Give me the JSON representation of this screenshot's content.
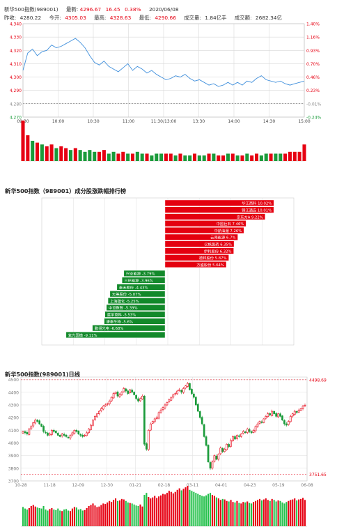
{
  "header": {
    "name": "新华500指数(989001)",
    "latest_label": "最新:",
    "latest": "4296.67",
    "change": "16.45",
    "pct": "0.38%",
    "date": "2020/06/08",
    "prev_label": "昨收:",
    "prev": "4280.22",
    "open_label": "今开:",
    "open": "4305.03",
    "high_label": "最高:",
    "high": "4328.63",
    "low_label": "最低:",
    "low": "4290.66",
    "vol_label": "成交量:",
    "vol": "1.84亿手",
    "amt_label": "成交额:",
    "amt": "2682.34亿"
  },
  "colors": {
    "up": "#e60012",
    "down": "#1a9b3a",
    "line": "#3f8fdc",
    "grid": "#d8d8d8",
    "axis": "#888888"
  },
  "ranking_title": "新华500指数（989001）成分股涨跌幅排行榜",
  "kline_title": "新华500指数(989001)日线",
  "chart_data": [
    {
      "type": "line",
      "title": "",
      "x_ticks": [
        "09:30",
        "10:00",
        "10:30",
        "11:00",
        "11:30/13:00",
        "13:30",
        "14:00",
        "14:30",
        "15:00"
      ],
      "y_left_ticks": [
        "4,340",
        "4,330",
        "4,320",
        "4,310",
        "4,300",
        "4,290",
        "4,280",
        "4,270"
      ],
      "y_right_ticks": [
        "1.40%",
        "1.16%",
        "0.93%",
        "0.70%",
        "0.46%",
        "0.23%",
        "-0.01%",
        "-0.24%"
      ],
      "ylim": [
        4270,
        4340
      ],
      "prev_close": 4280.22,
      "values": [
        4305,
        4318,
        4321,
        4316,
        4319,
        4320,
        4324,
        4322,
        4323,
        4325,
        4327,
        4329,
        4326,
        4322,
        4316,
        4311,
        4309,
        4312,
        4308,
        4306,
        4304,
        4307,
        4310,
        4305,
        4308,
        4306,
        4303,
        4305,
        4302,
        4300,
        4298,
        4299,
        4301,
        4300,
        4302,
        4299,
        4297,
        4298,
        4296,
        4294,
        4295,
        4293,
        4294,
        4296,
        4294,
        4296,
        4294,
        4297,
        4296,
        4299,
        4301,
        4298,
        4297,
        4296,
        4297,
        4295,
        4294,
        4295,
        4296,
        4297
      ],
      "volume": [
        22,
        14,
        11,
        10,
        9,
        8,
        9,
        7,
        8,
        7,
        6,
        7,
        6,
        5,
        6,
        5,
        5,
        6,
        4,
        5,
        4,
        5,
        4,
        4,
        5,
        4,
        4,
        3,
        4,
        4,
        4,
        4,
        3,
        4,
        3,
        3,
        4,
        3,
        3,
        4,
        4,
        3,
        3,
        4,
        4,
        3,
        3,
        4,
        3,
        4,
        3,
        4,
        4,
        4,
        4,
        4,
        5,
        5,
        5,
        9
      ],
      "volume_dir": [
        1,
        1,
        -1,
        1,
        -1,
        1,
        1,
        -1,
        1,
        1,
        -1,
        1,
        -1,
        -1,
        -1,
        -1,
        1,
        1,
        -1,
        -1,
        1,
        1,
        -1,
        1,
        -1,
        -1,
        1,
        -1,
        -1,
        -1,
        1,
        1,
        -1,
        1,
        -1,
        -1,
        1,
        -1,
        -1,
        1,
        -1,
        1,
        1,
        -1,
        1,
        -1,
        1,
        -1,
        1,
        1,
        -1,
        -1,
        1,
        -1,
        -1,
        1,
        1,
        1,
        1,
        1
      ]
    },
    {
      "type": "bar",
      "title": "新华500指数（989001）成分股涨跌幅排行榜",
      "categories": [
        "华江商科",
        "锦江酒店",
        "京东方A",
        "中国巨石",
        "中航油服",
        "云南能源",
        "亿帆医药",
        "伊利股份",
        "德邦股份",
        "方盛股份",
        "兴业能源",
        "三环能源",
        "泰禾股份",
        "天美股份",
        "上海建化",
        "中设数智",
        "蓝学商科",
        "康泰生物",
        "鹏翎光电",
        "紫光国微"
      ],
      "labels": [
        "华江商科 10.02%",
        "锦江酒店 10.01%",
        "京东方A 9.22%",
        "中国巨石 7.46%",
        "中航油服 7.26%",
        "云南能源 6.7%",
        "亿帆医药 6.35%",
        "伊利股份 6.32%",
        "德邦股份 5.87%",
        "方盛股份 5.64%",
        "兴业能源 -3.79%",
        "三环能源 -3.96%",
        "泰禾股份 -4.43%",
        "天美股份 -5.07%",
        "上海建化 -5.25%",
        "中设数智 -5.39%",
        "蓝学商科 -5.53%",
        "康泰生物 -5.6%",
        "鹏翎光电 -6.68%",
        "紫光国微 -9.11%"
      ],
      "values": [
        10.02,
        10.01,
        9.22,
        7.46,
        7.26,
        6.7,
        6.35,
        6.32,
        5.87,
        5.64,
        -3.79,
        -3.96,
        -4.43,
        -5.07,
        -5.25,
        -5.39,
        -5.53,
        -5.6,
        -6.68,
        -9.11
      ]
    },
    {
      "type": "candlestick",
      "title": "新华500指数(989001)日线",
      "x_ticks": [
        "10-28",
        "11-18",
        "12-09",
        "12-30",
        "01-21",
        "02-18",
        "03-11",
        "04-01",
        "04-23",
        "05-19",
        "06-08"
      ],
      "y_ticks": [
        "4500",
        "4400",
        "4300",
        "4200",
        "4100",
        "4000",
        "3900",
        "3800",
        "3700"
      ],
      "ylim": [
        3700,
        4520
      ],
      "max_label": "4498.69",
      "min_label": "3751.65",
      "closes": [
        4090,
        4080,
        4070,
        4110,
        4130,
        4160,
        4180,
        4170,
        4150,
        4130,
        4090,
        4080,
        4060,
        4070,
        4100,
        4090,
        4080,
        4060,
        4050,
        4070,
        4060,
        4050,
        4040,
        4060,
        4080,
        4100,
        4090,
        4070,
        4060,
        4050,
        4060,
        4080,
        4110,
        4140,
        4180,
        4210,
        4230,
        4250,
        4270,
        4290,
        4300,
        4310,
        4330,
        4360,
        4390,
        4400,
        4370,
        4380,
        4400,
        4430,
        4410,
        4390,
        4420,
        4400,
        4380,
        4350,
        4330,
        4350,
        4370,
        3990,
        3950,
        4100,
        4150,
        4170,
        4190,
        4200,
        4240,
        4260,
        4280,
        4300,
        4320,
        4340,
        4360,
        4380,
        4390,
        4410,
        4420,
        4400,
        4430,
        4450,
        4470,
        4420,
        4390,
        4360,
        4300,
        4250,
        4200,
        4150,
        4050,
        3980,
        3850,
        3800,
        3850,
        3900,
        3870,
        3910,
        3960,
        3930,
        3950,
        3990,
        3970,
        4020,
        4050,
        4030,
        4060,
        4050,
        4070,
        4090,
        4080,
        4110,
        4090,
        4080,
        4100,
        4130,
        4150,
        4170,
        4160,
        4190,
        4210,
        4230,
        4220,
        4250,
        4230,
        4210,
        4230,
        4210,
        4180,
        4150,
        4140,
        4170,
        4210,
        4230,
        4250,
        4240,
        4260,
        4270,
        4290,
        4297
      ],
      "volume": [
        38,
        35,
        33,
        36,
        40,
        42,
        39,
        37,
        36,
        35,
        40,
        33,
        31,
        34,
        36,
        33,
        32,
        35,
        31,
        30,
        33,
        34,
        31,
        30,
        35,
        38,
        37,
        33,
        34,
        31,
        32,
        36,
        40,
        42,
        45,
        41,
        38,
        39,
        42,
        45,
        44,
        47,
        50,
        48,
        52,
        55,
        50,
        51,
        54,
        53,
        50,
        47,
        46,
        45,
        43,
        41,
        40,
        43,
        39,
        62,
        66,
        58,
        55,
        57,
        60,
        56,
        59,
        61,
        64,
        63,
        66,
        70,
        68,
        65,
        68,
        72,
        75,
        71,
        74,
        77,
        80,
        72,
        70,
        68,
        66,
        64,
        62,
        60,
        59,
        61,
        64,
        66,
        62,
        60,
        57,
        55,
        52,
        54,
        53,
        50,
        49,
        52,
        48,
        47,
        50,
        46,
        45,
        48,
        47,
        49,
        46,
        45,
        48,
        50,
        52,
        54,
        51,
        53,
        55,
        52,
        50,
        54,
        52,
        49,
        51,
        50,
        47,
        45,
        48,
        50,
        52,
        53,
        55,
        51,
        53,
        54,
        56,
        52
      ],
      "volume_dir": [
        -1,
        -1,
        -1,
        1,
        1,
        1,
        1,
        -1,
        -1,
        -1,
        -1,
        -1,
        -1,
        1,
        1,
        -1,
        -1,
        -1,
        -1,
        1,
        -1,
        -1,
        -1,
        1,
        1,
        1,
        -1,
        -1,
        -1,
        -1,
        1,
        1,
        1,
        1,
        1,
        1,
        1,
        1,
        1,
        1,
        1,
        1,
        1,
        1,
        1,
        1,
        -1,
        1,
        1,
        1,
        -1,
        -1,
        1,
        -1,
        -1,
        -1,
        -1,
        1,
        1,
        -1,
        -1,
        1,
        1,
        1,
        1,
        1,
        1,
        1,
        1,
        1,
        1,
        1,
        1,
        1,
        1,
        1,
        1,
        -1,
        1,
        1,
        1,
        -1,
        -1,
        -1,
        -1,
        -1,
        -1,
        -1,
        -1,
        -1,
        -1,
        -1,
        1,
        1,
        -1,
        1,
        1,
        -1,
        1,
        1,
        -1,
        1,
        1,
        -1,
        1,
        -1,
        1,
        1,
        -1,
        1,
        -1,
        -1,
        1,
        1,
        1,
        1,
        -1,
        1,
        1,
        1,
        -1,
        1,
        -1,
        -1,
        1,
        -1,
        -1,
        -1,
        -1,
        1,
        1,
        1,
        1,
        -1,
        1,
        1,
        1,
        1
      ]
    }
  ]
}
